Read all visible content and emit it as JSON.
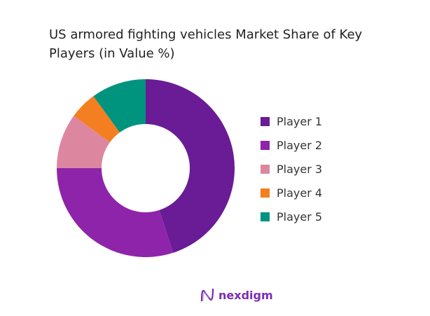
{
  "chart_data": {
    "type": "pie",
    "donut": true,
    "title": "US armored fighting vehicles Market Share of Key Players (in Value %)",
    "categories": [
      "Player 1",
      "Player 2",
      "Player 3",
      "Player 4",
      "Player 5"
    ],
    "values": [
      45,
      30,
      10,
      5,
      10
    ],
    "colors": [
      "#6a1b96",
      "#8e24aa",
      "#dc879f",
      "#f47f20",
      "#00947f"
    ],
    "legend_position": "right"
  },
  "logo": {
    "text": "nexdigm"
  }
}
